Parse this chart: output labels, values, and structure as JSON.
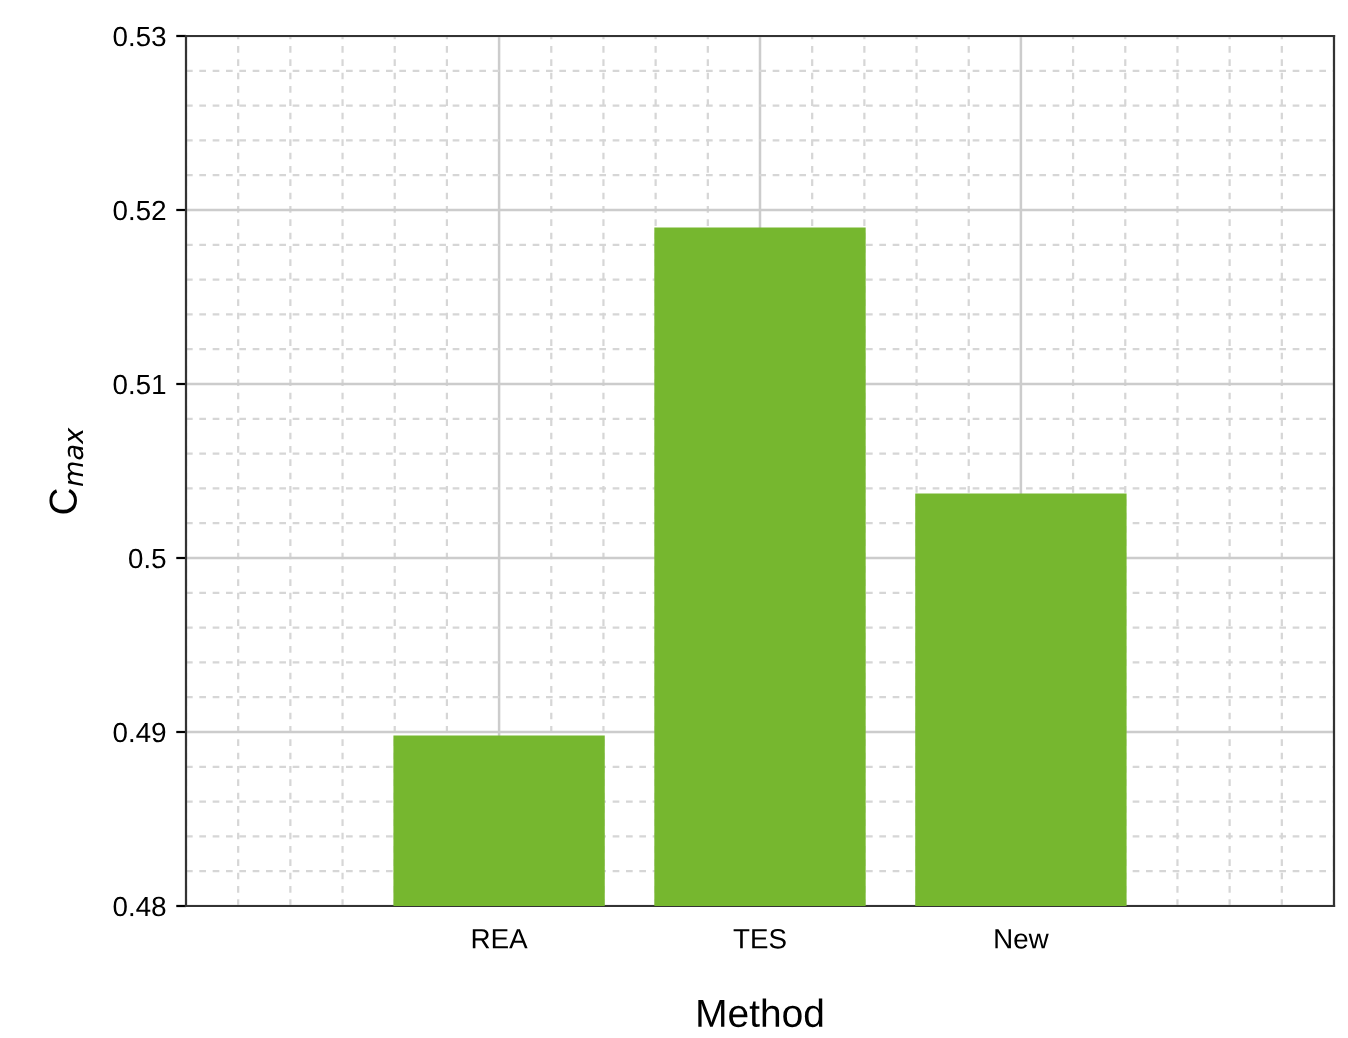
{
  "chart_data": {
    "type": "bar",
    "xlabel": "Method",
    "ylabel": "C$_{max}$",
    "categories": [
      "REA",
      "TES",
      "New"
    ],
    "values": [
      0.4898,
      0.519,
      0.5037
    ],
    "color": "#76b72f",
    "ylim": [
      0.48,
      0.53
    ],
    "yticks": [
      0.48,
      0.49,
      0.5,
      0.51,
      0.52,
      0.53
    ],
    "grid": true
  }
}
